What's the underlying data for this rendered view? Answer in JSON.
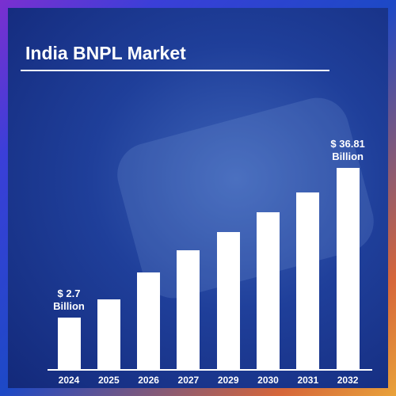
{
  "chart_data": {
    "type": "bar",
    "title": "India BNPL Market",
    "categories": [
      "2024",
      "2025",
      "2026",
      "2027",
      "2029",
      "2030",
      "2031",
      "2032"
    ],
    "values": [
      2.7,
      6.9,
      13.0,
      18.0,
      22.2,
      26.7,
      31.2,
      36.81
    ],
    "value_labels": [
      "$ 2.7 Billion",
      null,
      null,
      null,
      null,
      null,
      null,
      "$ 36.81 Billion"
    ],
    "color": "#ffffff"
  }
}
